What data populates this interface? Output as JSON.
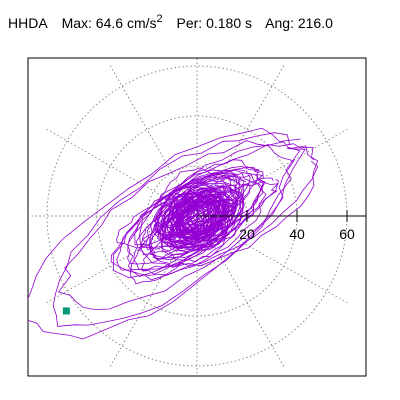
{
  "header": {
    "station": "HHDA",
    "max_label": "Max:",
    "max_value": "64.6",
    "max_unit": "cm/s",
    "max_unit_exp": "2",
    "per_label": "Per:",
    "per_value": "0.180 s",
    "ang_label": "Ang:",
    "ang_value": "216.0"
  },
  "colors": {
    "trace": "#9400d3",
    "marker": "#00997a",
    "grid": "#888888",
    "axis": "#000000"
  },
  "chart_data": {
    "type": "polar-orbit",
    "radial_ticks": [
      20,
      40,
      60
    ],
    "tick_labels": [
      "20",
      "40",
      "60"
    ],
    "rmax": 70,
    "angular_gridlines_deg": [
      0,
      30,
      60,
      90,
      120,
      150,
      180,
      210,
      240,
      270,
      300,
      330
    ],
    "peak_value": 64.6,
    "peak_angle_deg": 216.0,
    "trace_note": "dense particle-motion orbit, mostly within r<20, largest excursions toward SW along ~216 deg"
  }
}
